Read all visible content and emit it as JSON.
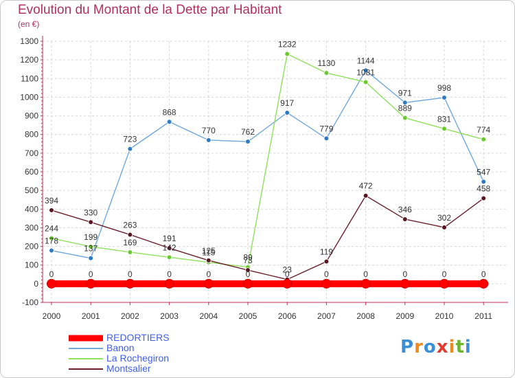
{
  "chart_data": {
    "type": "line",
    "title": "Evolution du Montant de la Dette par Habitant",
    "subtitle": "(en €)",
    "xlabel": "",
    "ylabel": "",
    "categories": [
      "2000",
      "2001",
      "2002",
      "2003",
      "2004",
      "2005",
      "2006",
      "2007",
      "2008",
      "2009",
      "2010",
      "2011"
    ],
    "ylim": [
      -100,
      1300
    ],
    "yticks": [
      -100,
      0,
      100,
      200,
      300,
      400,
      500,
      600,
      700,
      800,
      900,
      1000,
      1100,
      1200,
      1300
    ],
    "grid": true,
    "legend_position": "bottom-left",
    "series": [
      {
        "name": "REDORTIERS",
        "color": "#ff0000",
        "values": [
          0,
          0,
          0,
          0,
          0,
          0,
          0,
          0,
          0,
          0,
          0,
          0
        ]
      },
      {
        "name": "Banon",
        "color": "#6fa8dc",
        "marker_color": "#2e7bc4",
        "values": [
          178,
          137,
          723,
          868,
          770,
          762,
          917,
          779,
          1144,
          971,
          998,
          547
        ]
      },
      {
        "name": "La Rochegiron",
        "color": "#8fe05c",
        "marker_color": "#6ac92f",
        "values": [
          244,
          199,
          169,
          142,
          115,
          89,
          1232,
          1130,
          1081,
          889,
          831,
          774
        ]
      },
      {
        "name": "Montsalier",
        "color": "#6b1f2a",
        "marker_color": "#5a1620",
        "values": [
          394,
          330,
          263,
          191,
          125,
          73,
          23,
          119,
          472,
          346,
          302,
          458
        ]
      }
    ],
    "data_labels": [
      [
        "0",
        "0",
        "0",
        "0",
        "0",
        "0",
        "0",
        "0",
        "0",
        "0",
        "0",
        "0"
      ],
      [
        "178",
        "137",
        "723",
        "868",
        "770",
        "762",
        "917",
        "779",
        "1144",
        "971",
        "998",
        "547"
      ],
      [
        "244",
        "199",
        "169",
        "142",
        "115",
        "89",
        "1232",
        "1130",
        "1081",
        "889",
        "831",
        "774"
      ],
      [
        "394",
        "330",
        "263",
        "191",
        "125",
        "73",
        "23",
        "119",
        "472",
        "346",
        "302",
        "458"
      ]
    ]
  },
  "logo": {
    "letters": [
      "P",
      "r",
      "o",
      "x",
      "i",
      "t",
      "i"
    ],
    "colors": [
      "#3a8fd8",
      "#f08a1c",
      "#3a8fd8",
      "#e23a2e",
      "#f08a1c",
      "#6ab42e",
      "#3a8fd8"
    ]
  }
}
